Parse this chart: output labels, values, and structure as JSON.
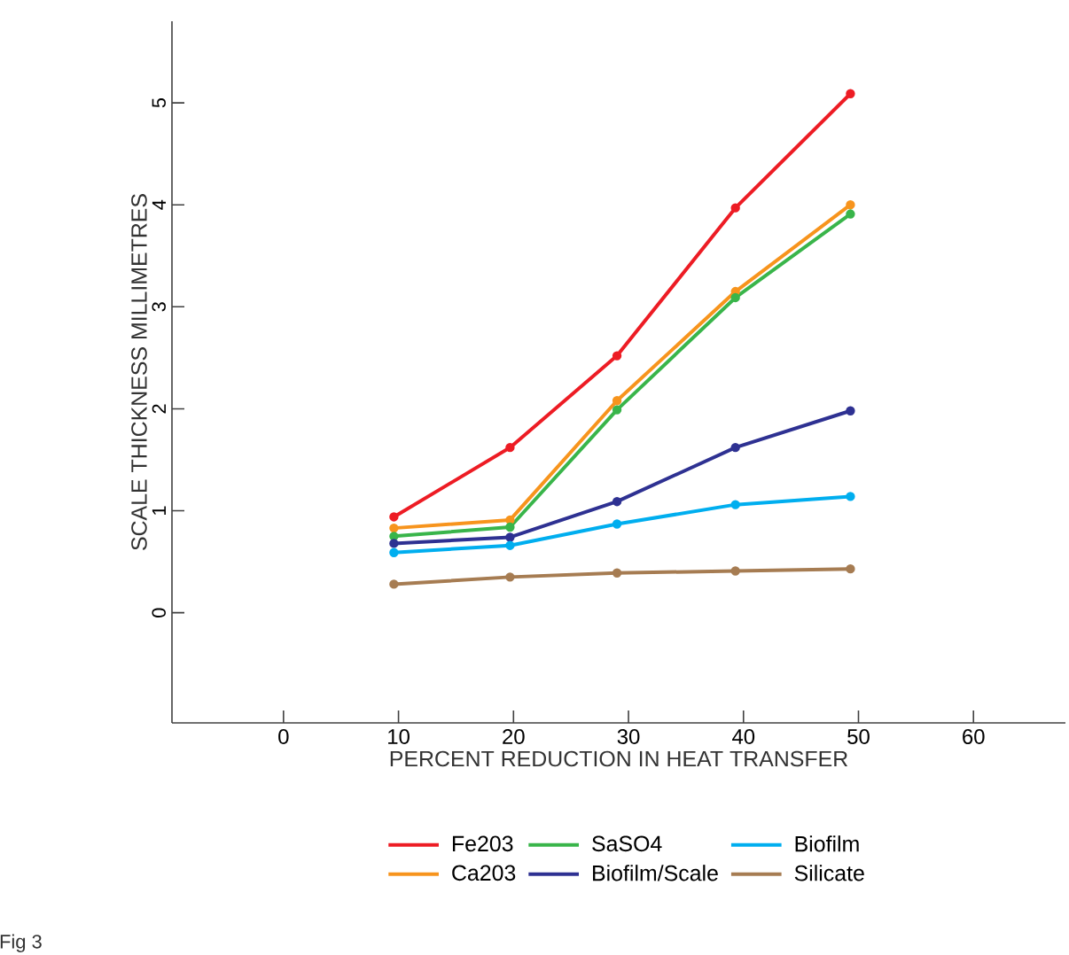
{
  "chart_data": {
    "type": "line",
    "xlabel": "PERCENT REDUCTION IN HEAT TRANSFER",
    "ylabel": "SCALE THICKNESS MILLIMETRES",
    "x": [
      9.6,
      19.7,
      29,
      39.3,
      49.3
    ],
    "series": [
      {
        "name": "Fe203",
        "color": "#ed1c24",
        "values": [
          0.94,
          1.62,
          2.52,
          3.97,
          5.09
        ]
      },
      {
        "name": "Ca203",
        "color": "#f7941d",
        "values": [
          0.83,
          0.91,
          2.08,
          3.15,
          4.0
        ]
      },
      {
        "name": "SaSO4",
        "color": "#39b54a",
        "values": [
          0.75,
          0.84,
          1.99,
          3.09,
          3.91
        ]
      },
      {
        "name": "Biofilm/Scale",
        "color": "#2e3192",
        "values": [
          0.68,
          0.74,
          1.09,
          1.62,
          1.98
        ]
      },
      {
        "name": "Biofilm",
        "color": "#00aeef",
        "values": [
          0.59,
          0.66,
          0.87,
          1.06,
          1.14
        ]
      },
      {
        "name": "Silicate",
        "color": "#a67c52",
        "values": [
          0.28,
          0.35,
          0.39,
          0.41,
          0.43
        ]
      }
    ],
    "xlim": [
      -9.7,
      68
    ],
    "ylim": [
      -1.08,
      5.8
    ],
    "xticks": [
      0,
      10,
      20,
      30,
      40,
      50,
      60
    ],
    "yticks": [
      0,
      1,
      2,
      3,
      4,
      5
    ],
    "marker": "circle",
    "line_style": "solid",
    "legend": "bottom",
    "grid": false,
    "annotations": [
      "Fig 3"
    ]
  }
}
